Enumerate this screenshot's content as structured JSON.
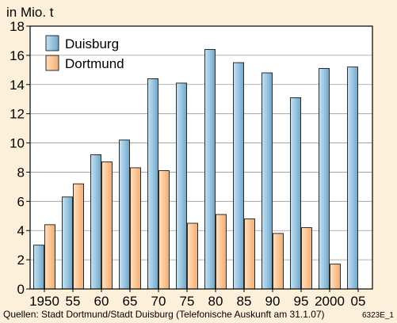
{
  "chart_data": {
    "type": "bar",
    "ylabel": "in Mio. t",
    "ylim": [
      0,
      18
    ],
    "yticks": [
      0,
      2,
      4,
      6,
      8,
      10,
      12,
      14,
      16,
      18
    ],
    "categories": [
      "1950",
      "55",
      "60",
      "65",
      "70",
      "75",
      "80",
      "85",
      "90",
      "95",
      "2000",
      "05"
    ],
    "series": [
      {
        "name": "Duisburg",
        "color": "#8dbcd9",
        "values": [
          3.0,
          6.3,
          9.2,
          10.2,
          14.4,
          14.1,
          16.4,
          15.5,
          14.8,
          13.1,
          15.1,
          15.2
        ]
      },
      {
        "name": "Dortmund",
        "color": "#fbc593",
        "values": [
          4.4,
          7.2,
          8.7,
          8.3,
          8.1,
          4.5,
          5.1,
          4.8,
          3.8,
          4.2,
          1.7,
          null
        ]
      }
    ],
    "legend": "top-left",
    "grid": true
  },
  "source": "Quellen: Stadt Dortmund/Stadt Duisburg (Telefonische Auskunft am 31.1.07)",
  "code": "6323E_1"
}
